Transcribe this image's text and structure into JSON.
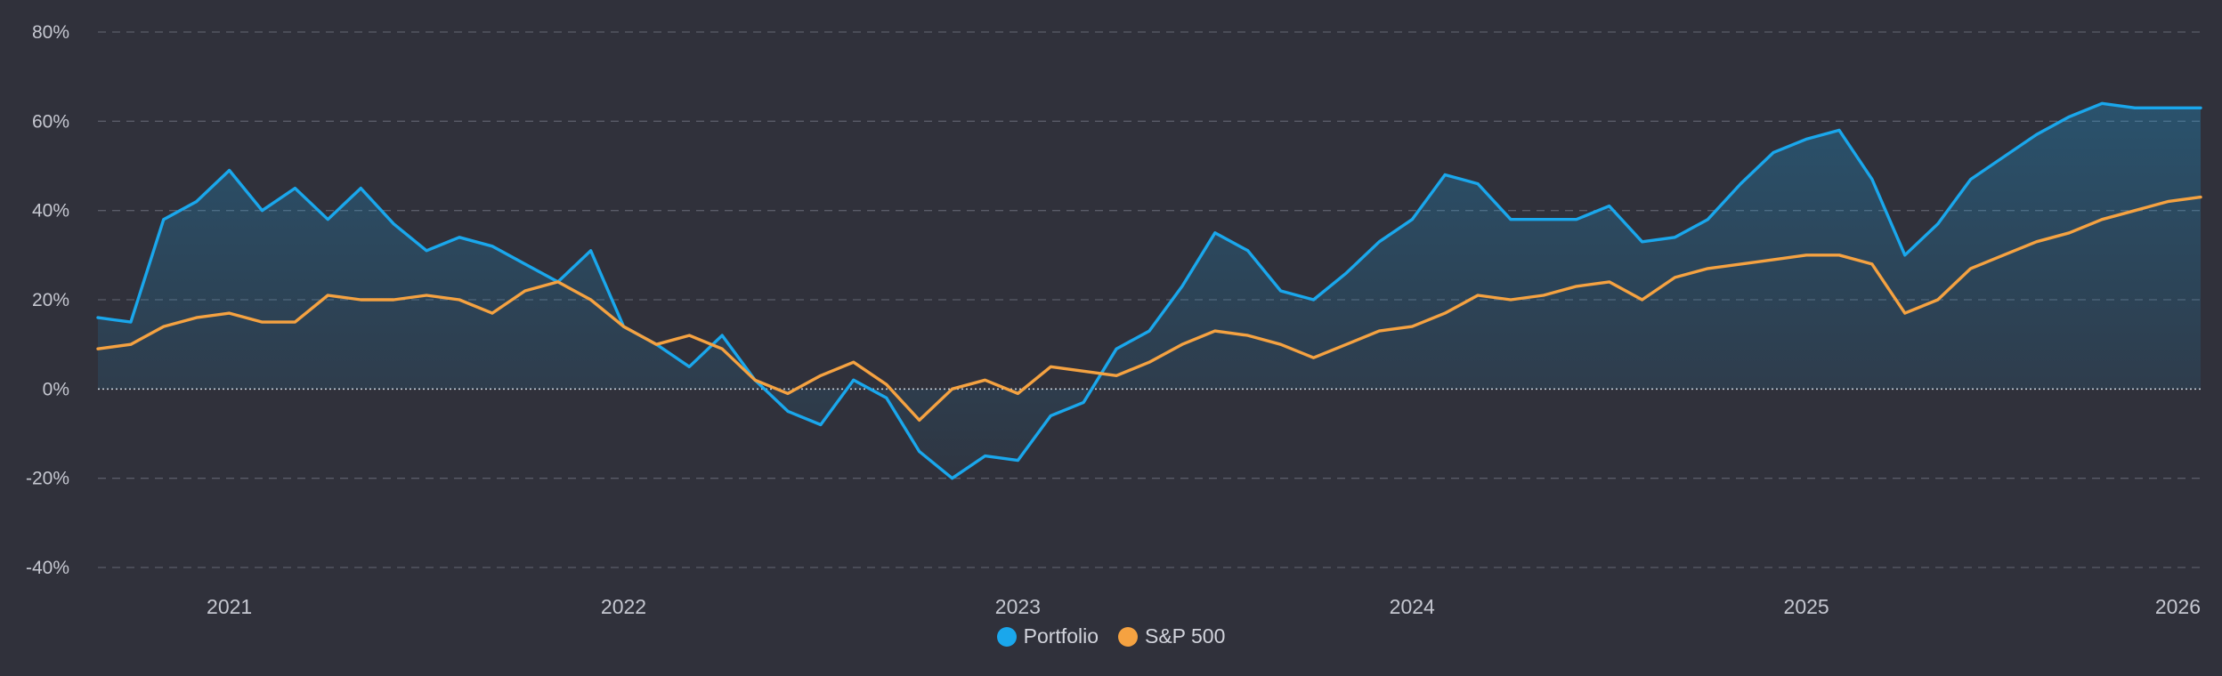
{
  "colors": {
    "background": "#30313b",
    "portfolio": "#1aa7ec",
    "sp500": "#f5a241",
    "grid": "#5a5c68",
    "zero_line": "#d8d9de"
  },
  "legend": {
    "portfolio": "Portfolio",
    "sp500": "S&P 500"
  },
  "chart_data": {
    "type": "line",
    "title": "",
    "xlabel": "",
    "ylabel": "",
    "y_unit": "%",
    "ylim": [
      -40,
      80
    ],
    "y_ticks": [
      80,
      60,
      40,
      20,
      0,
      -20,
      -40
    ],
    "y_tick_labels": [
      "80%",
      "60%",
      "40%",
      "20%",
      "0%",
      "-20%",
      "-40%"
    ],
    "xlim": [
      "2020-09",
      "2026-01"
    ],
    "x_tick_labels": [
      "2021",
      "2022",
      "2023",
      "2024",
      "2025",
      "2026"
    ],
    "x_ticks": [
      "2021-01",
      "2022-01",
      "2023-01",
      "2024-01",
      "2025-01",
      "2026-01"
    ],
    "grid": "horizontal dashed",
    "legend_position": "bottom-center",
    "x": [
      "2020-09",
      "2020-10",
      "2020-11",
      "2020-12",
      "2021-01",
      "2021-02",
      "2021-03",
      "2021-04",
      "2021-05",
      "2021-06",
      "2021-07",
      "2021-08",
      "2021-09",
      "2021-10",
      "2021-11",
      "2021-12",
      "2022-01",
      "2022-02",
      "2022-03",
      "2022-04",
      "2022-05",
      "2022-06",
      "2022-07",
      "2022-08",
      "2022-09",
      "2022-10",
      "2022-11",
      "2022-12",
      "2023-01",
      "2023-02",
      "2023-03",
      "2023-04",
      "2023-05",
      "2023-06",
      "2023-07",
      "2023-08",
      "2023-09",
      "2023-10",
      "2023-11",
      "2023-12",
      "2024-01",
      "2024-02",
      "2024-03",
      "2024-04",
      "2024-05",
      "2024-06",
      "2024-07",
      "2024-08",
      "2024-09",
      "2024-10",
      "2024-11",
      "2024-12",
      "2025-01",
      "2025-02",
      "2025-03",
      "2025-04",
      "2025-05",
      "2025-06",
      "2025-07",
      "2025-08",
      "2025-09",
      "2025-10",
      "2025-11",
      "2025-12",
      "2026-01"
    ],
    "series": [
      {
        "name": "Portfolio",
        "values": [
          16,
          15,
          38,
          42,
          49,
          40,
          45,
          38,
          45,
          37,
          31,
          34,
          32,
          28,
          24,
          31,
          14,
          10,
          5,
          12,
          2,
          -5,
          -8,
          2,
          -2,
          -14,
          -20,
          -15,
          -16,
          -6,
          -3,
          9,
          13,
          23,
          35,
          31,
          22,
          20,
          26,
          33,
          38,
          48,
          46,
          38,
          38,
          38,
          41,
          33,
          34,
          38,
          46,
          53,
          56,
          58,
          47,
          30,
          37,
          47,
          52,
          57,
          61,
          64,
          63,
          63,
          63
        ]
      },
      {
        "name": "S&P 500",
        "values": [
          9,
          10,
          14,
          16,
          17,
          15,
          15,
          21,
          20,
          20,
          21,
          20,
          17,
          22,
          24,
          20,
          14,
          10,
          12,
          9,
          2,
          -1,
          3,
          6,
          1,
          -7,
          0,
          2,
          -1,
          5,
          4,
          3,
          6,
          10,
          13,
          12,
          10,
          7,
          10,
          13,
          14,
          17,
          21,
          20,
          21,
          23,
          24,
          20,
          25,
          27,
          28,
          29,
          30,
          30,
          28,
          17,
          20,
          27,
          30,
          33,
          35,
          38,
          40,
          42,
          43
        ]
      }
    ]
  }
}
